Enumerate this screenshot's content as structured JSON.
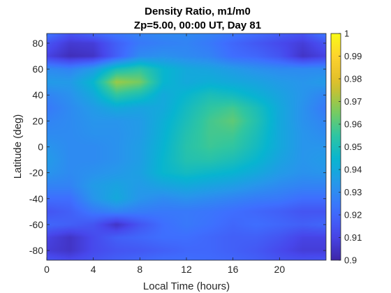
{
  "chart_data": {
    "type": "heatmap",
    "title": "Density Ratio, m1/m0",
    "subtitle": "Zp=5.00, 00:00 UT, Day 81",
    "xlabel": "Local Time (hours)",
    "ylabel": "Latitude (deg)",
    "xlim": [
      0,
      24
    ],
    "ylim": [
      -87.5,
      87.5
    ],
    "xticks": [
      0,
      4,
      8,
      12,
      16,
      20
    ],
    "yticks": [
      -80,
      -60,
      -40,
      -20,
      0,
      20,
      40,
      60,
      80
    ],
    "colorbar": {
      "colormap": "parula",
      "clim": [
        0.9,
        1.0
      ],
      "ticks": [
        "0.9",
        "0.91",
        "0.92",
        "0.93",
        "0.94",
        "0.95",
        "0.96",
        "0.97",
        "0.98",
        "0.99",
        "1"
      ]
    },
    "x": [
      0,
      2,
      4,
      6,
      8,
      10,
      12,
      14,
      16,
      18,
      20,
      22,
      24
    ],
    "y": [
      87.5,
      80,
      70,
      60,
      50,
      40,
      30,
      20,
      10,
      0,
      -10,
      -20,
      -30,
      -40,
      -50,
      -60,
      -70,
      -80,
      -87.5
    ],
    "z": [
      [
        0.925,
        0.915,
        0.92,
        0.925,
        0.928,
        0.93,
        0.93,
        0.928,
        0.925,
        0.922,
        0.918,
        0.915,
        0.925
      ],
      [
        0.915,
        0.907,
        0.908,
        0.918,
        0.925,
        0.927,
        0.928,
        0.925,
        0.92,
        0.916,
        0.912,
        0.908,
        0.915
      ],
      [
        0.91,
        0.903,
        0.905,
        0.918,
        0.93,
        0.932,
        0.93,
        0.928,
        0.922,
        0.92,
        0.915,
        0.905,
        0.91
      ],
      [
        0.93,
        0.928,
        0.935,
        0.95,
        0.955,
        0.945,
        0.94,
        0.938,
        0.935,
        0.932,
        0.93,
        0.93,
        0.93
      ],
      [
        0.935,
        0.935,
        0.945,
        0.97,
        0.965,
        0.945,
        0.94,
        0.942,
        0.94,
        0.938,
        0.935,
        0.933,
        0.935
      ],
      [
        0.928,
        0.932,
        0.94,
        0.955,
        0.95,
        0.94,
        0.945,
        0.95,
        0.948,
        0.943,
        0.938,
        0.933,
        0.928
      ],
      [
        0.925,
        0.93,
        0.935,
        0.94,
        0.938,
        0.94,
        0.948,
        0.955,
        0.958,
        0.95,
        0.94,
        0.932,
        0.925
      ],
      [
        0.928,
        0.93,
        0.933,
        0.933,
        0.935,
        0.942,
        0.95,
        0.958,
        0.962,
        0.952,
        0.94,
        0.932,
        0.928
      ],
      [
        0.93,
        0.93,
        0.932,
        0.932,
        0.935,
        0.943,
        0.952,
        0.958,
        0.958,
        0.95,
        0.94,
        0.933,
        0.93
      ],
      [
        0.933,
        0.93,
        0.93,
        0.932,
        0.936,
        0.944,
        0.953,
        0.957,
        0.955,
        0.948,
        0.94,
        0.933,
        0.933
      ],
      [
        0.935,
        0.93,
        0.93,
        0.932,
        0.936,
        0.945,
        0.952,
        0.953,
        0.95,
        0.945,
        0.938,
        0.933,
        0.935
      ],
      [
        0.933,
        0.93,
        0.932,
        0.934,
        0.937,
        0.945,
        0.948,
        0.946,
        0.944,
        0.94,
        0.935,
        0.932,
        0.933
      ],
      [
        0.928,
        0.928,
        0.935,
        0.938,
        0.935,
        0.938,
        0.94,
        0.938,
        0.936,
        0.933,
        0.93,
        0.928,
        0.928
      ],
      [
        0.922,
        0.922,
        0.933,
        0.94,
        0.933,
        0.93,
        0.932,
        0.93,
        0.928,
        0.926,
        0.925,
        0.922,
        0.922
      ],
      [
        0.915,
        0.918,
        0.925,
        0.928,
        0.926,
        0.925,
        0.925,
        0.924,
        0.922,
        0.92,
        0.918,
        0.915,
        0.915
      ],
      [
        0.92,
        0.918,
        0.915,
        0.905,
        0.915,
        0.922,
        0.925,
        0.923,
        0.92,
        0.922,
        0.92,
        0.918,
        0.92
      ],
      [
        0.91,
        0.905,
        0.912,
        0.918,
        0.92,
        0.922,
        0.922,
        0.92,
        0.918,
        0.918,
        0.915,
        0.91,
        0.91
      ],
      [
        0.908,
        0.905,
        0.912,
        0.915,
        0.916,
        0.918,
        0.92,
        0.92,
        0.918,
        0.916,
        0.912,
        0.908,
        0.908
      ],
      [
        0.915,
        0.912,
        0.915,
        0.918,
        0.92,
        0.922,
        0.922,
        0.921,
        0.92,
        0.918,
        0.915,
        0.914,
        0.915
      ]
    ]
  }
}
